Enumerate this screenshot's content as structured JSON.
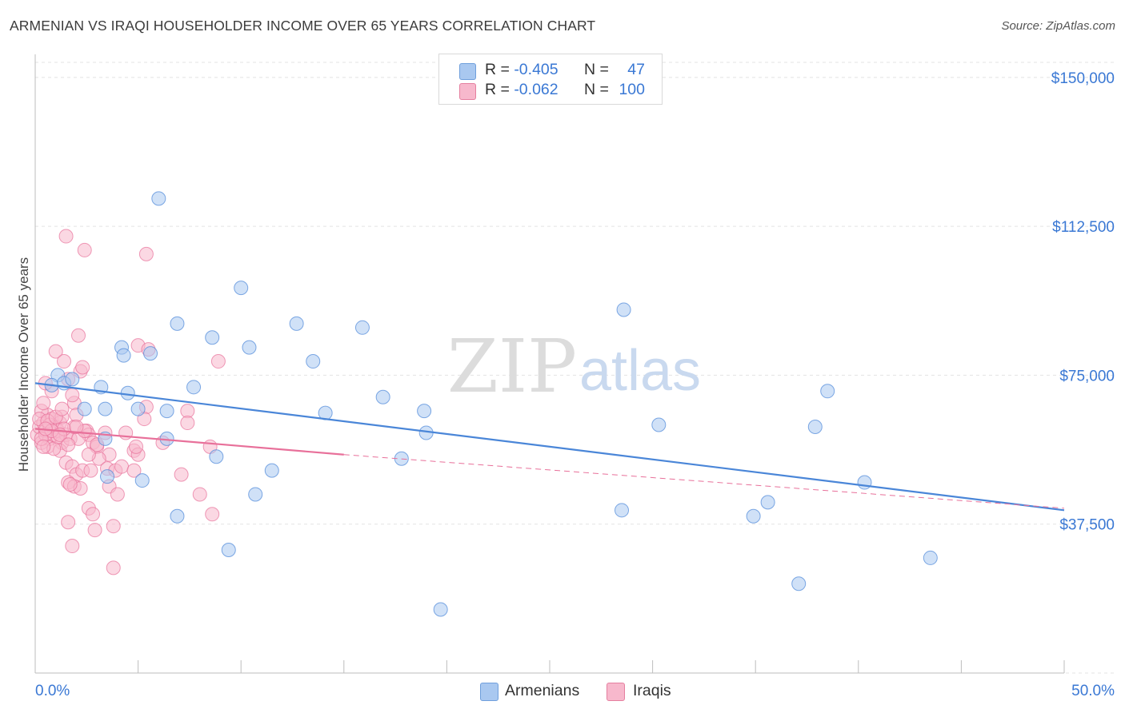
{
  "title": "ARMENIAN VS IRAQI HOUSEHOLDER INCOME OVER 65 YEARS CORRELATION CHART",
  "source": "Source: ZipAtlas.com",
  "watermark": {
    "zip": "ZIP",
    "atlas": "atlas"
  },
  "legend_top": {
    "rows": [
      {
        "r_label": "R =",
        "r_value": "-0.405",
        "n_label": "N =",
        "n_value": "47",
        "color": "#a9c8f0",
        "border": "#6f9fdc"
      },
      {
        "r_label": "R =",
        "r_value": "-0.062",
        "n_label": "N =",
        "n_value": "100",
        "color": "#f7b8cc",
        "border": "#e57f9f"
      }
    ]
  },
  "legend_bottom": [
    {
      "label": "Armenians",
      "color": "#a9c8f0",
      "border": "#6f9fdc"
    },
    {
      "label": "Iraqis",
      "color": "#f7b8cc",
      "border": "#e57f9f"
    }
  ],
  "chart_data": {
    "type": "scatter",
    "title": "ARMENIAN VS IRAQI HOUSEHOLDER INCOME OVER 65 YEARS CORRELATION CHART",
    "xlabel": "",
    "ylabel": "Householder Income Over 65 years",
    "xlim": [
      0,
      50
    ],
    "ylim": [
      0,
      155000
    ],
    "x_tick_labels": [
      "0.0%",
      "50.0%"
    ],
    "y_ticks": [
      37500,
      75000,
      112500,
      150000
    ],
    "y_tick_labels": [
      "$37,500",
      "$75,000",
      "$112,500",
      "$150,000"
    ],
    "grid": "horizontal dashed",
    "legend": "top-center and bottom-center",
    "series": [
      {
        "name": "Armenians",
        "color": "#4a86d8",
        "fill": "#a9c8f0",
        "trend": {
          "x": [
            0,
            50
          ],
          "y": [
            73000,
            41000
          ],
          "dashed_extension": false
        },
        "points": [
          [
            1.1,
            75000
          ],
          [
            0.8,
            72500
          ],
          [
            1.4,
            73000
          ],
          [
            1.8,
            74000
          ],
          [
            3.2,
            72000
          ],
          [
            2.4,
            66500
          ],
          [
            3.4,
            66500
          ],
          [
            4.5,
            70500
          ],
          [
            5.0,
            66500
          ],
          [
            4.2,
            82000
          ],
          [
            4.3,
            80000
          ],
          [
            5.6,
            80500
          ],
          [
            6.9,
            88000
          ],
          [
            6.4,
            66000
          ],
          [
            7.7,
            72000
          ],
          [
            8.6,
            84500
          ],
          [
            10.0,
            97000
          ],
          [
            10.4,
            82000
          ],
          [
            12.7,
            88000
          ],
          [
            13.5,
            78500
          ],
          [
            14.1,
            65500
          ],
          [
            15.9,
            87000
          ],
          [
            16.9,
            69500
          ],
          [
            18.9,
            66000
          ],
          [
            17.8,
            54000
          ],
          [
            19.0,
            60500
          ],
          [
            3.4,
            59000
          ],
          [
            5.2,
            48500
          ],
          [
            6.4,
            59000
          ],
          [
            8.8,
            54500
          ],
          [
            11.5,
            51000
          ],
          [
            10.7,
            45000
          ],
          [
            6.9,
            39500
          ],
          [
            9.4,
            31000
          ],
          [
            3.5,
            49500
          ],
          [
            28.6,
            91500
          ],
          [
            28.5,
            41000
          ],
          [
            30.3,
            62500
          ],
          [
            34.9,
            39500
          ],
          [
            35.6,
            43000
          ],
          [
            37.9,
            62000
          ],
          [
            38.5,
            71000
          ],
          [
            40.3,
            48000
          ],
          [
            43.5,
            29000
          ],
          [
            37.1,
            22500
          ],
          [
            19.7,
            16000
          ],
          [
            6.0,
            119500
          ]
        ]
      },
      {
        "name": "Iraqis",
        "color": "#e8709a",
        "fill": "#f7b8cc",
        "trend": {
          "x": [
            0,
            15
          ],
          "y": [
            61500,
            55000
          ],
          "dashed_extension": {
            "x": [
              15,
              50
            ],
            "y": [
              55000,
              41500
            ]
          }
        },
        "points": [
          [
            0.1,
            60000
          ],
          [
            0.2,
            62000
          ],
          [
            0.3,
            58000
          ],
          [
            0.4,
            63000
          ],
          [
            0.5,
            61000
          ],
          [
            0.6,
            65000
          ],
          [
            0.7,
            59000
          ],
          [
            0.8,
            64000
          ],
          [
            0.9,
            60000
          ],
          [
            1.0,
            62000
          ],
          [
            0.3,
            66000
          ],
          [
            0.6,
            57000
          ],
          [
            1.1,
            61000
          ],
          [
            1.2,
            63000
          ],
          [
            1.3,
            58000
          ],
          [
            0.4,
            68000
          ],
          [
            0.8,
            71000
          ],
          [
            1.5,
            60000
          ],
          [
            1.7,
            59000
          ],
          [
            1.9,
            62000
          ],
          [
            0.5,
            73000
          ],
          [
            1.0,
            81000
          ],
          [
            1.4,
            78500
          ],
          [
            2.2,
            76000
          ],
          [
            2.3,
            77000
          ],
          [
            1.6,
            74000
          ],
          [
            1.9,
            68000
          ],
          [
            2.0,
            65000
          ],
          [
            2.5,
            61000
          ],
          [
            2.6,
            60000
          ],
          [
            2.8,
            58000
          ],
          [
            3.0,
            57000
          ],
          [
            3.4,
            60500
          ],
          [
            3.6,
            55000
          ],
          [
            2.1,
            85000
          ],
          [
            2.4,
            106500
          ],
          [
            1.5,
            110000
          ],
          [
            5.4,
            105500
          ],
          [
            5.0,
            82500
          ],
          [
            5.5,
            81500
          ],
          [
            7.4,
            66000
          ],
          [
            7.4,
            63000
          ],
          [
            5.4,
            67000
          ],
          [
            8.9,
            78500
          ],
          [
            4.4,
            60500
          ],
          [
            4.8,
            56000
          ],
          [
            5.0,
            55000
          ],
          [
            6.2,
            58000
          ],
          [
            8.5,
            57000
          ],
          [
            4.9,
            57000
          ],
          [
            1.2,
            56000
          ],
          [
            1.5,
            53000
          ],
          [
            1.8,
            52000
          ],
          [
            2.0,
            50000
          ],
          [
            2.3,
            51000
          ],
          [
            2.7,
            51000
          ],
          [
            3.1,
            54000
          ],
          [
            3.5,
            51500
          ],
          [
            3.9,
            51000
          ],
          [
            4.2,
            52000
          ],
          [
            4.8,
            51000
          ],
          [
            1.6,
            48000
          ],
          [
            1.9,
            47000
          ],
          [
            2.2,
            46500
          ],
          [
            1.7,
            47500
          ],
          [
            3.6,
            47000
          ],
          [
            4.0,
            45000
          ],
          [
            2.6,
            41500
          ],
          [
            2.8,
            40000
          ],
          [
            1.6,
            38000
          ],
          [
            3.8,
            37000
          ],
          [
            2.9,
            36000
          ],
          [
            1.8,
            32000
          ],
          [
            3.8,
            26500
          ],
          [
            7.1,
            50000
          ],
          [
            8.0,
            45000
          ],
          [
            8.6,
            40000
          ],
          [
            0.2,
            64000
          ],
          [
            0.5,
            60000
          ],
          [
            0.7,
            62500
          ],
          [
            0.9,
            56500
          ],
          [
            1.1,
            59500
          ],
          [
            1.3,
            64500
          ],
          [
            1.4,
            61500
          ],
          [
            1.8,
            70000
          ],
          [
            2.1,
            59000
          ],
          [
            2.4,
            61000
          ],
          [
            2.6,
            55000
          ],
          [
            0.3,
            59000
          ],
          [
            0.6,
            63500
          ],
          [
            0.8,
            61000
          ],
          [
            1.2,
            60000
          ],
          [
            1.6,
            57500
          ],
          [
            2.0,
            62000
          ],
          [
            0.4,
            57000
          ],
          [
            3.0,
            57500
          ],
          [
            0.5,
            61500
          ],
          [
            1.0,
            64500
          ],
          [
            1.3,
            66500
          ],
          [
            5.3,
            64000
          ]
        ]
      }
    ]
  }
}
